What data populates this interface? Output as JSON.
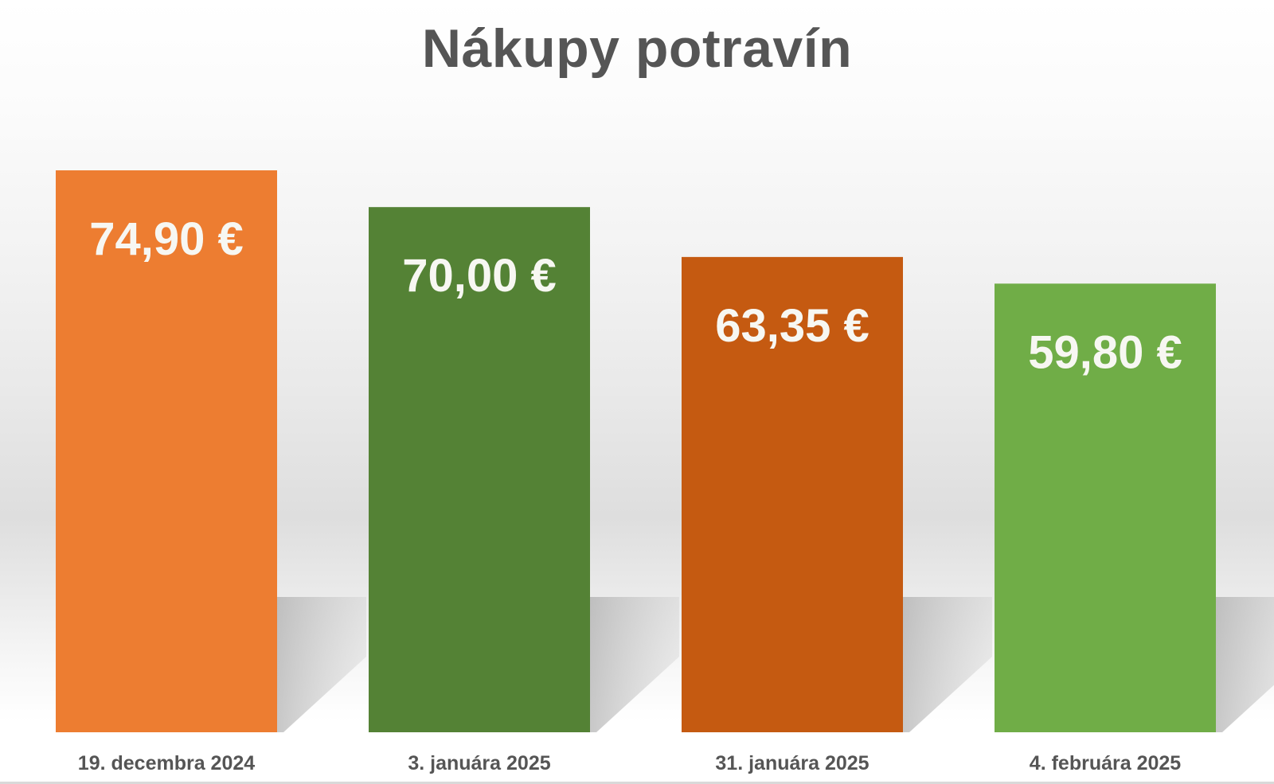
{
  "chart_data": {
    "type": "bar",
    "title": "Nákupy potravín",
    "xlabel": "",
    "ylabel": "",
    "categories": [
      "19. decembra 2024",
      "3. januára 2025",
      "31. januára 2025",
      "4. februára 2025"
    ],
    "values": [
      74.9,
      70.0,
      63.35,
      59.8
    ],
    "value_labels": [
      "74,90 €",
      "70,00 €",
      "63,35 €",
      "59,80 €"
    ],
    "colors": [
      "#ED7D31",
      "#548235",
      "#C55A11",
      "#70AD47"
    ],
    "grid": false,
    "legend": "none",
    "axes_visible": false
  }
}
